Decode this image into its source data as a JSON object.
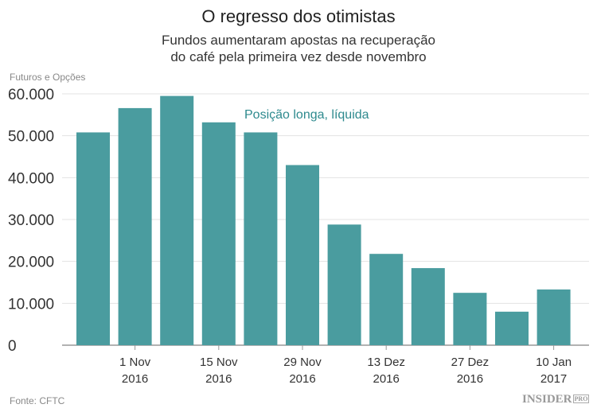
{
  "title": "O regresso dos otimistas",
  "subtitle_line1": "Fundos aumentaram apostas na recuperação",
  "subtitle_line2": "do café pela primeira vez desde novembro",
  "source": "Fonte: CFTC",
  "logo": "INSIDER",
  "logo_pro": "PRO",
  "colors": {
    "bar": "#4a9c9f",
    "annotation": "#2e8a8e"
  },
  "chart_data": {
    "type": "bar",
    "ylabel": "Futuros e Opções",
    "ylim": [
      0,
      60000
    ],
    "yticks": [
      0,
      10000,
      20000,
      30000,
      40000,
      50000,
      60000
    ],
    "ytick_labels": [
      "0",
      "10.000",
      "20.000",
      "30.000",
      "40.000",
      "50.000",
      "60.000"
    ],
    "grid": true,
    "annotation": "Posição longa, líquida",
    "values": [
      50800,
      56600,
      59500,
      53200,
      50800,
      43000,
      28800,
      21800,
      18400,
      12500,
      8000,
      13300
    ],
    "xtick_labels": [
      {
        "index": 1,
        "line1": "1 Nov",
        "line2": "2016"
      },
      {
        "index": 3,
        "line1": "15 Nov",
        "line2": "2016"
      },
      {
        "index": 5,
        "line1": "29 Nov",
        "line2": "2016"
      },
      {
        "index": 7,
        "line1": "13 Dez",
        "line2": "2016"
      },
      {
        "index": 9,
        "line1": "27 Dez",
        "line2": "2016"
      },
      {
        "index": 11,
        "line1": "10 Jan",
        "line2": "2017"
      }
    ]
  }
}
